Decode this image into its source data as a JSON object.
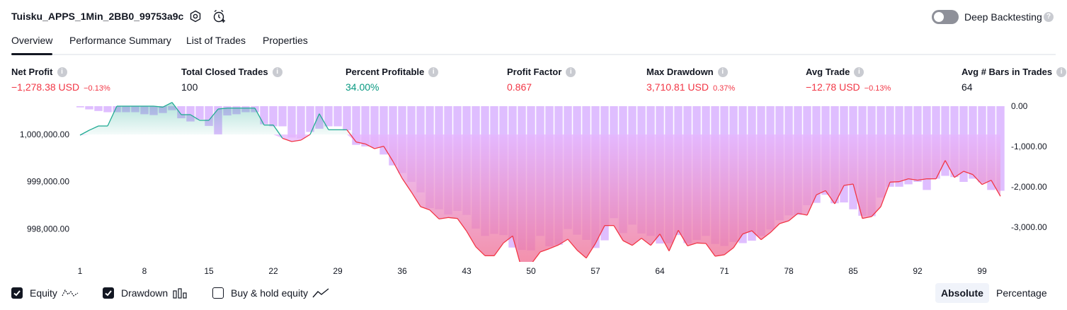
{
  "header": {
    "strategy_title": "Tuisku_APPS_1Min_2BB0_99753a9c",
    "settings_icon": "settings-hex-icon",
    "alert_icon": "add-alert-clock-icon",
    "deep_backtesting_label": "Deep Backtesting",
    "deep_backtesting_enabled": false
  },
  "tabs": [
    {
      "label": "Overview",
      "active": true
    },
    {
      "label": "Performance Summary",
      "active": false
    },
    {
      "label": "List of Trades",
      "active": false
    },
    {
      "label": "Properties",
      "active": false
    }
  ],
  "metrics": [
    {
      "label": "Net Profit",
      "value": "−1,278.38 USD",
      "pct": "−0.13%",
      "color": "red"
    },
    {
      "label": "Total Closed Trades",
      "value": "100",
      "pct": "",
      "color": "dark"
    },
    {
      "label": "Percent Profitable",
      "value": "34.00%",
      "pct": "",
      "color": "green"
    },
    {
      "label": "Profit Factor",
      "value": "0.867",
      "pct": "",
      "color": "red"
    },
    {
      "label": "Max Drawdown",
      "value": "3,710.81 USD",
      "pct": "0.37%",
      "color": "red"
    },
    {
      "label": "Avg Trade",
      "value": "−12.78 USD",
      "pct": "−0.13%",
      "color": "red"
    },
    {
      "label": "Avg # Bars in Trades",
      "value": "64",
      "pct": "",
      "color": "dark"
    }
  ],
  "chart_data": {
    "type": "line",
    "x_ticks": [
      "1",
      "8",
      "15",
      "22",
      "29",
      "36",
      "43",
      "50",
      "57",
      "64",
      "71",
      "78",
      "85",
      "92",
      "99"
    ],
    "left_axis_ticks": [
      "1,000,000.00",
      "999,000.00",
      "998,000.00"
    ],
    "right_axis_ticks": [
      "0.00",
      "-1,000.00",
      "-2,000.00",
      "-3,000.00"
    ],
    "equity_baseline": 1000000,
    "ylim_equity": [
      997300,
      1000750
    ],
    "ylim_drawdown": [
      -3900,
      0
    ],
    "series": [
      {
        "name": "Equity",
        "color": "#22ab94",
        "values": [
          999985,
          1000090,
          1000180,
          1000180,
          1000600,
          1000600,
          1000600,
          1000600,
          1000600,
          1000580,
          1000680,
          1000420,
          1000420,
          1000300,
          1000300,
          1000540,
          1000560,
          1000560,
          1000560,
          1000560,
          1000200,
          1000200,
          999920,
          999850,
          999880,
          1000000,
          1000440,
          1000100,
          1000100,
          1000100,
          999840,
          999800,
          999700,
          999750,
          999430,
          999070,
          998780,
          998470,
          998400,
          998210,
          998240,
          998220,
          997950,
          997620,
          997430,
          997430,
          997700,
          997850,
          997140,
          997250,
          997510,
          997580,
          997660,
          997780,
          997550,
          997380,
          997690,
          998070,
          998070,
          997750,
          997650,
          997800,
          997650,
          997890,
          997530,
          997970,
          997640,
          997700,
          997690,
          997420,
          997450,
          997600,
          997890,
          997960,
          997770,
          997920,
          998110,
          998170,
          998330,
          998290,
          998720,
          998810,
          998530,
          998920,
          998950,
          998220,
          998260,
          998470,
          998990,
          999000,
          999060,
          999030,
          999060,
          999060,
          999450,
          999090,
          999220,
          999150,
          998940,
          999030,
          998690
        ]
      },
      {
        "name": "Drawdown",
        "color": "#d9b3ff",
        "values": [
          -30,
          -80,
          -120,
          -150,
          -150,
          -150,
          -150,
          -200,
          -220,
          -170,
          -100,
          -300,
          -380,
          -330,
          -490,
          -700,
          -230,
          -200,
          -150,
          -150,
          -450,
          -500,
          -500,
          -780,
          -800,
          -640,
          -560,
          -500,
          -500,
          -600,
          -960,
          -1000,
          -1020,
          -1200,
          -1470,
          -1660,
          -1880,
          -2140,
          -2530,
          -2560,
          -2690,
          -2600,
          -2700,
          -3040,
          -3220,
          -3170,
          -3200,
          -3510,
          -3570,
          -3580,
          -3220,
          -3480,
          -3440,
          -3050,
          -3190,
          -3320,
          -3520,
          -3330,
          -2780,
          -3150,
          -2940,
          -3160,
          -3220,
          -3410,
          -3400,
          -3200,
          -3400,
          -3320,
          -3220,
          -3420,
          -3470,
          -3370,
          -3400,
          -3340,
          -3220,
          -3060,
          -2830,
          -2710,
          -2700,
          -2460,
          -2400,
          -2200,
          -2410,
          -2390,
          -2560,
          -2720,
          -2730,
          -2270,
          -2000,
          -2000,
          -1940,
          -1880,
          -2080,
          -1800,
          -1730,
          -1760,
          -1880,
          -1800,
          -1890,
          -2080,
          -2100
        ]
      }
    ]
  },
  "legend": [
    {
      "label": "Equity",
      "checked": true,
      "icon": "equity-line-icon"
    },
    {
      "label": "Drawdown",
      "checked": true,
      "icon": "drawdown-bars-icon"
    },
    {
      "label": "Buy & hold equity",
      "checked": false,
      "icon": "buy-hold-line-icon"
    }
  ],
  "modes": [
    {
      "label": "Absolute",
      "active": true
    },
    {
      "label": "Percentage",
      "active": false
    }
  ]
}
